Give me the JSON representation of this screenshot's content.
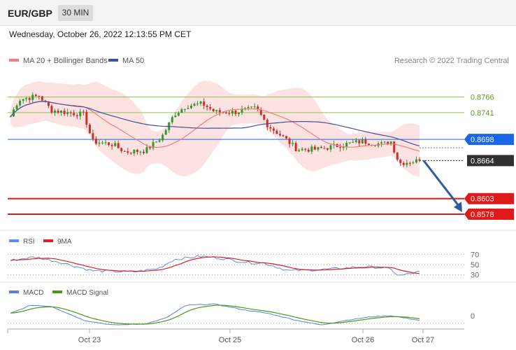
{
  "header": {
    "symbol": "EUR/GBP",
    "timeframe": "30 MIN",
    "datetime": "Wednesday, October 26, 2022 12:13:55 PM CET"
  },
  "legend": {
    "ma20_label": "MA 20 + Bollinger Bands",
    "ma50_label": "MA 50",
    "credit": "Research © 2022 Trading Central"
  },
  "colors": {
    "up_candle": "#2f9a2f",
    "down_candle": "#c9302c",
    "ma20": "#f08080",
    "ma50": "#3f51a3",
    "bollinger_fill": "#fde2e2",
    "level_blue": "#1a66e8",
    "level_red": "#e01a1a",
    "level_green": "#8bc34a",
    "current_price": "#303030",
    "arrow": "#2f5d99",
    "rsi": "#5b8fe0",
    "rsi_ma": "#e02020",
    "macd": "#5b7fe0",
    "macd_signal": "#4a9a10"
  },
  "chart_data": [
    {
      "type": "candlestick",
      "title": "EUR/GBP",
      "timeframe": "30 MIN",
      "ylim": [
        0.856,
        0.8815
      ],
      "levels": [
        {
          "value": 0.8766,
          "label": "0.8766",
          "kind": "resistance-green"
        },
        {
          "value": 0.8741,
          "label": "0.8741",
          "kind": "resistance-green"
        },
        {
          "value": 0.8698,
          "label": "0.8698",
          "kind": "pivot-blue"
        },
        {
          "value": 0.8664,
          "label": "0.8664",
          "kind": "current-price"
        },
        {
          "value": 0.8603,
          "label": "0.8603",
          "kind": "support-red"
        },
        {
          "value": 0.8578,
          "label": "0.8578",
          "kind": "support-red"
        }
      ],
      "forecast_arrow": {
        "from": 0.8664,
        "to": 0.8578
      },
      "series": [
        {
          "name": "MA 20 + Bollinger Bands",
          "kind": "ma20"
        },
        {
          "name": "MA 50",
          "kind": "ma50"
        }
      ],
      "x_ticks": [
        "Oct 23",
        "Oct 25",
        "Oct 26",
        "Oct 27"
      ],
      "anchors": [
        {
          "x": 0.0,
          "p": 0.8735
        },
        {
          "x": 0.02,
          "p": 0.8762
        },
        {
          "x": 0.07,
          "p": 0.8768
        },
        {
          "x": 0.1,
          "p": 0.8745
        },
        {
          "x": 0.15,
          "p": 0.874
        },
        {
          "x": 0.18,
          "p": 0.8738
        },
        {
          "x": 0.2,
          "p": 0.8695
        },
        {
          "x": 0.25,
          "p": 0.869
        },
        {
          "x": 0.28,
          "p": 0.8678
        },
        {
          "x": 0.33,
          "p": 0.868
        },
        {
          "x": 0.37,
          "p": 0.8702
        },
        {
          "x": 0.4,
          "p": 0.8738
        },
        {
          "x": 0.43,
          "p": 0.8752
        },
        {
          "x": 0.47,
          "p": 0.8755
        },
        {
          "x": 0.5,
          "p": 0.8742
        },
        {
          "x": 0.55,
          "p": 0.8742
        },
        {
          "x": 0.6,
          "p": 0.8748
        },
        {
          "x": 0.63,
          "p": 0.872
        },
        {
          "x": 0.67,
          "p": 0.87
        },
        {
          "x": 0.7,
          "p": 0.8682
        },
        {
          "x": 0.75,
          "p": 0.8682
        },
        {
          "x": 0.8,
          "p": 0.8688
        },
        {
          "x": 0.86,
          "p": 0.8695
        },
        {
          "x": 0.91,
          "p": 0.869
        },
        {
          "x": 0.93,
          "p": 0.8695
        },
        {
          "x": 0.95,
          "p": 0.866
        },
        {
          "x": 1.0,
          "p": 0.8664
        }
      ]
    },
    {
      "type": "line",
      "title": "RSI",
      "series": [
        {
          "name": "RSI"
        },
        {
          "name": "9MA"
        }
      ],
      "y_ticks": [
        70,
        50,
        30
      ],
      "ylim": [
        20,
        80
      ],
      "anchors": [
        {
          "x": 0.0,
          "v": 58
        },
        {
          "x": 0.06,
          "v": 65
        },
        {
          "x": 0.12,
          "v": 55
        },
        {
          "x": 0.2,
          "v": 38
        },
        {
          "x": 0.3,
          "v": 36
        },
        {
          "x": 0.36,
          "v": 42
        },
        {
          "x": 0.4,
          "v": 60
        },
        {
          "x": 0.46,
          "v": 66
        },
        {
          "x": 0.5,
          "v": 64
        },
        {
          "x": 0.58,
          "v": 54
        },
        {
          "x": 0.62,
          "v": 53
        },
        {
          "x": 0.68,
          "v": 38
        },
        {
          "x": 0.75,
          "v": 40
        },
        {
          "x": 0.8,
          "v": 42
        },
        {
          "x": 0.86,
          "v": 46
        },
        {
          "x": 0.91,
          "v": 44
        },
        {
          "x": 0.93,
          "v": 40
        },
        {
          "x": 0.95,
          "v": 28
        },
        {
          "x": 1.0,
          "v": 36
        }
      ]
    },
    {
      "type": "line",
      "title": "MACD",
      "series": [
        {
          "name": "MACD"
        },
        {
          "name": "MACD Signal"
        }
      ],
      "y_ticks": [
        0
      ],
      "ylim": [
        -0.0015,
        0.0015
      ],
      "anchors": [
        {
          "x": 0.0,
          "v": 0.0002
        },
        {
          "x": 0.05,
          "v": 0.0009
        },
        {
          "x": 0.1,
          "v": 0.0008
        },
        {
          "x": 0.18,
          "v": -0.0004
        },
        {
          "x": 0.25,
          "v": -0.0008
        },
        {
          "x": 0.33,
          "v": -0.0007
        },
        {
          "x": 0.38,
          "v": -0.0002
        },
        {
          "x": 0.43,
          "v": 0.0009
        },
        {
          "x": 0.5,
          "v": 0.001
        },
        {
          "x": 0.57,
          "v": 0.0005
        },
        {
          "x": 0.63,
          "v": 0.0002
        },
        {
          "x": 0.7,
          "v": -0.0004
        },
        {
          "x": 0.76,
          "v": -0.0008
        },
        {
          "x": 0.82,
          "v": -0.0004
        },
        {
          "x": 0.88,
          "v": -0.0001
        },
        {
          "x": 0.93,
          "v": 0.0
        },
        {
          "x": 1.0,
          "v": -0.0004
        }
      ]
    }
  ]
}
